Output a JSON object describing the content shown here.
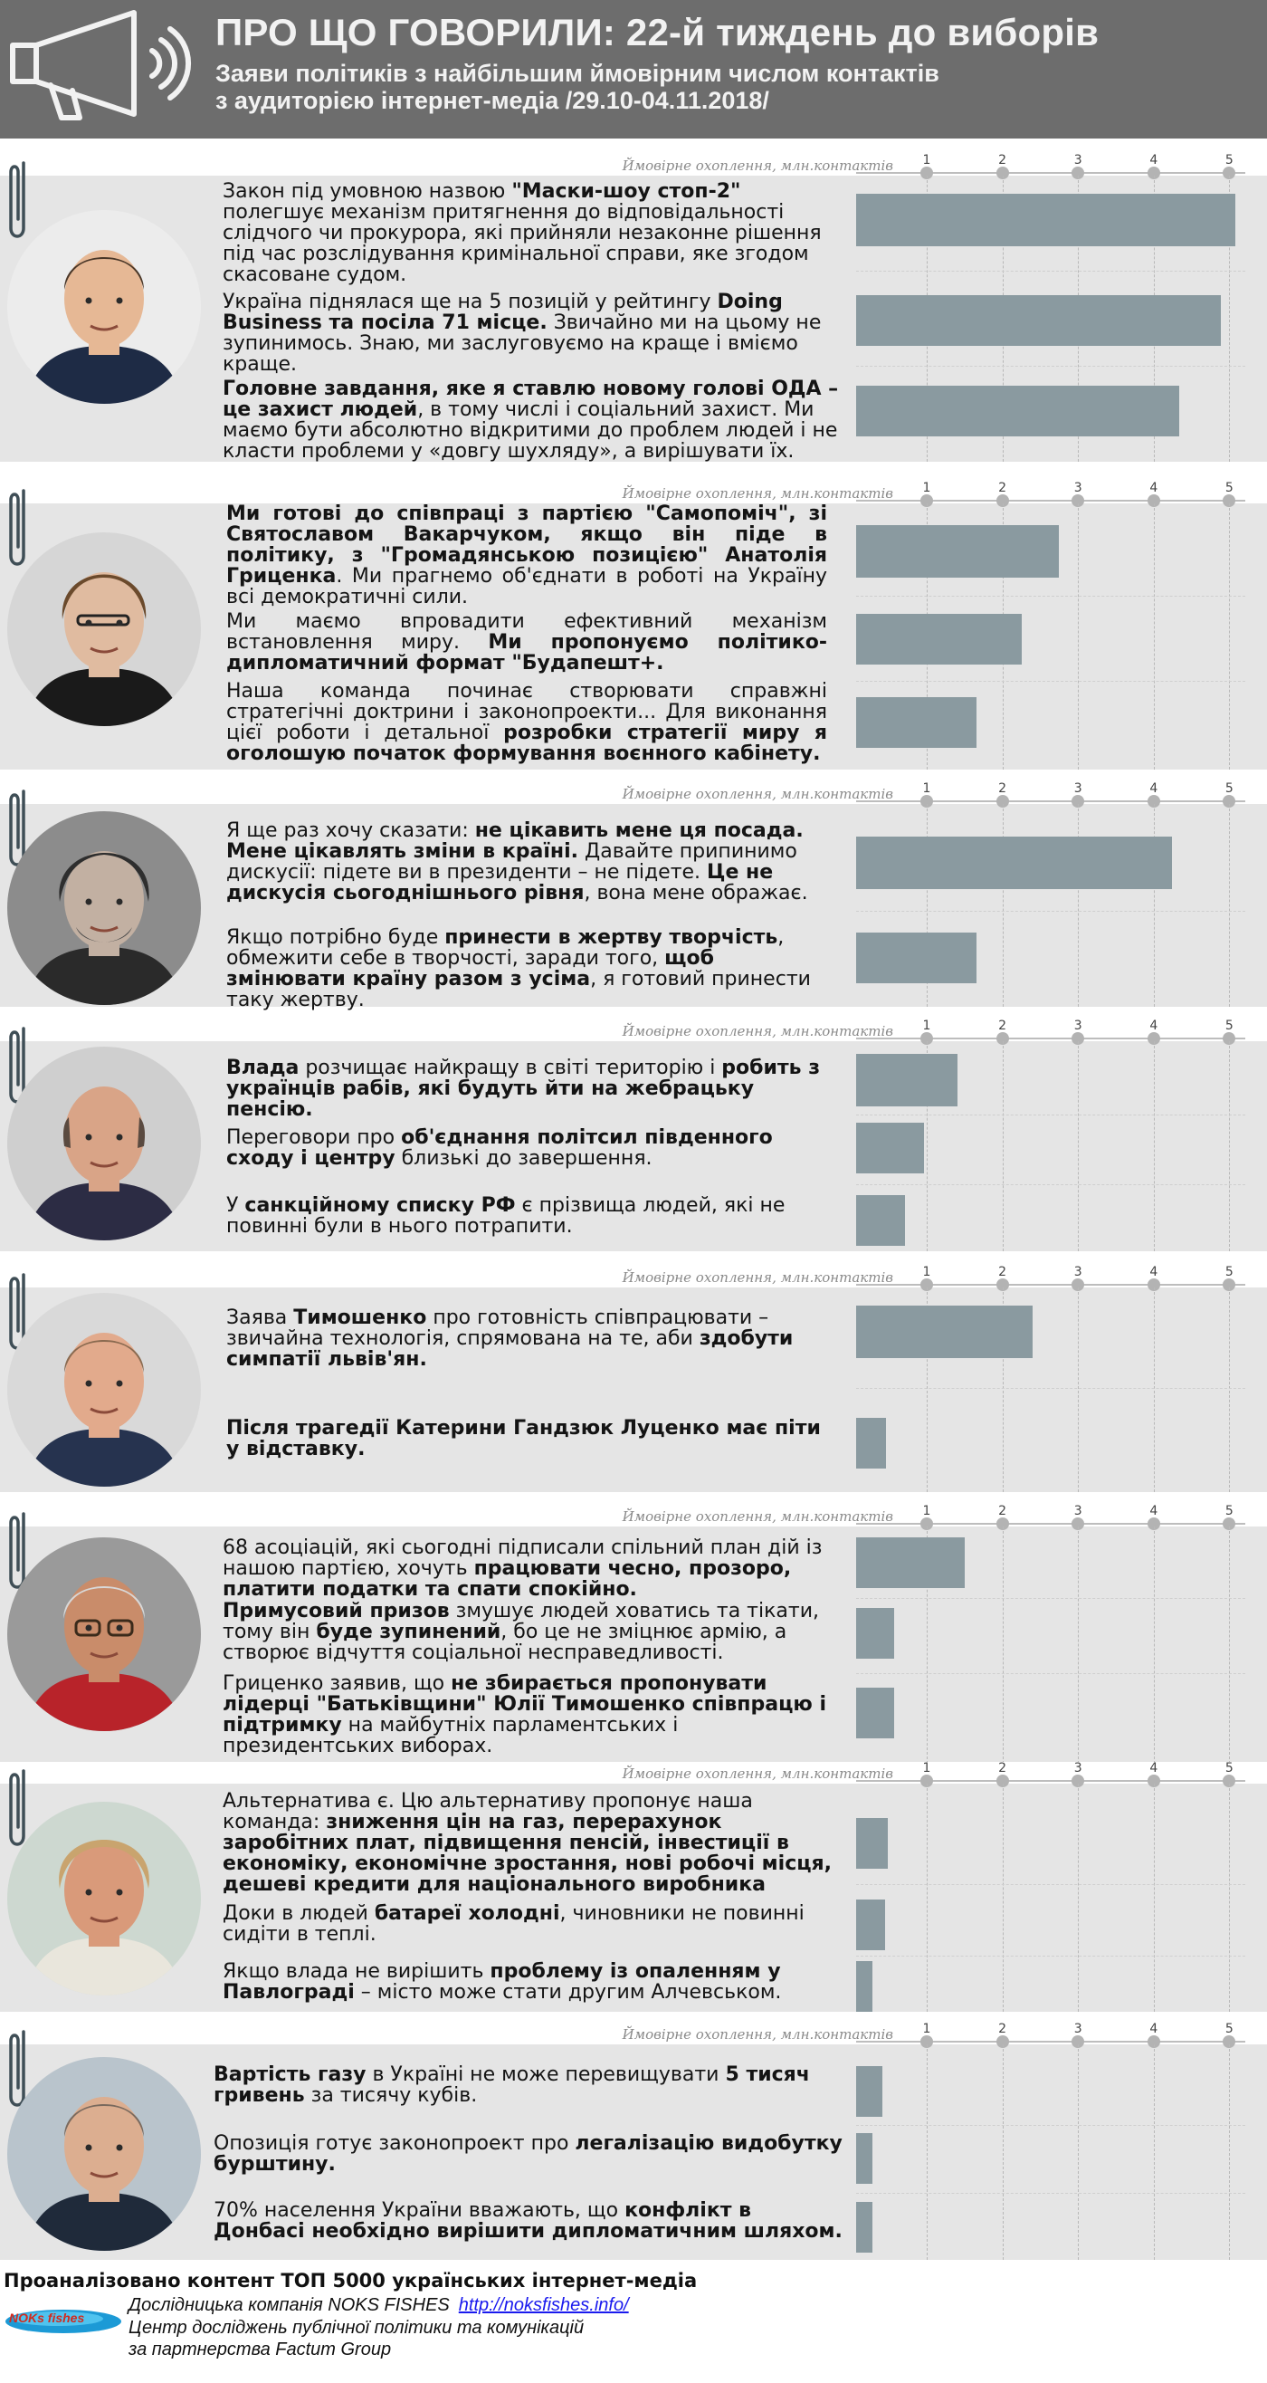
{
  "header": {
    "title": "ПРО ЩО ГОВОРИЛИ: 22-й тиждень до виборів",
    "subtitle_line1": "Заяви політиків з найбільшим ймовірним числом контактів",
    "subtitle_line2": "з аудиторією інтернет-медіа /29.10-04.11.2018/",
    "icon": "megaphone-icon"
  },
  "axis": {
    "label": "Ймовірне охоплення, млн.контактів",
    "ticks": [
      "1",
      "2",
      "3",
      "4",
      "5"
    ]
  },
  "chart_data": {
    "type": "bar",
    "orientation": "horizontal",
    "xlabel": "Ймовірне охоплення, млн.контактів",
    "xlim": [
      0,
      5.2
    ],
    "groups": [
      {
        "values": [
          5.05,
          4.85,
          4.3
        ]
      },
      {
        "values": [
          2.7,
          2.2,
          1.6
        ]
      },
      {
        "values": [
          4.2,
          1.6
        ]
      },
      {
        "values": [
          1.35,
          0.9,
          0.65
        ]
      },
      {
        "values": [
          2.35,
          0.4
        ]
      },
      {
        "values": [
          1.45,
          0.5,
          0.5
        ]
      },
      {
        "values": [
          0.42,
          0.38,
          0.22
        ]
      },
      {
        "values": [
          0.35,
          0.22,
          0.22
        ]
      }
    ]
  },
  "sections": [
    {
      "quotes": [
        [
          {
            "t": "Закон під умовною назвою "
          },
          {
            "b": "\"Маски-шоу стоп-2\""
          },
          {
            "t": " полегшує механізм притягнення до відповідальності слідчого чи прокурора, які прийняли незаконне рішення під час розслідування кримінальної справи, яке згодом скасоване судом."
          }
        ],
        [
          {
            "t": "Україна піднялася ще на 5 позицій у рейтингу "
          },
          {
            "b": "Doing Business та посіла 71 місце."
          },
          {
            "t": " Звичайно ми на цьому не зупинимось. Знаю, ми заслуговуємо на краще і вміємо краще."
          }
        ],
        [
          {
            "b": "Головне завдання, яке я ставлю новому голові ОДА – це захист людей"
          },
          {
            "t": ", в тому числі і соціальний захист. Ми маємо бути абсолютно відкритими до проблем людей і не класти проблеми у «довгу шухляду», а вирішувати їх."
          }
        ]
      ]
    },
    {
      "quotes": [
        [
          {
            "b": "Ми готові до співпраці з партією \"Самопоміч\", зі Святославом Вакарчуком, якщо він піде в політику, з \"Громадянською позицією\" Анатолія Гриценка"
          },
          {
            "t": ". Ми прагнемо об'єднати в роботі на Україну всі демократичні сили."
          }
        ],
        [
          {
            "t": "Ми маємо впровадити ефективний механізм встановлення миру. "
          },
          {
            "b": "Ми пропонуємо політико-дипломатичний формат \"Будапешт+."
          }
        ],
        [
          {
            "t": "Наша команда починає створювати справжні стратегічні доктрини і законопроекти... Для виконання цієї роботи і детальної "
          },
          {
            "b": "розробки стратегії миру я оголошую початок формування воєнного кабінету."
          }
        ]
      ]
    },
    {
      "quotes": [
        [
          {
            "t": "Я ще раз хочу сказати: "
          },
          {
            "b": "не цікавить мене ця посада. Мене цікавлять зміни в країні."
          },
          {
            "t": " Давайте припинимо дискусії: підете ви в президенти – не підете. "
          },
          {
            "b": "Це не дискусія сьогоднішнього рівня"
          },
          {
            "t": ", вона мене ображає."
          }
        ],
        [
          {
            "t": "Якщо потрібно буде "
          },
          {
            "b": "принести в жертву творчість"
          },
          {
            "t": ", обмежити себе в творчості, заради того, "
          },
          {
            "b": "щоб змінювати країну разом з усіма"
          },
          {
            "t": ", я готовий принести таку жертву."
          }
        ]
      ]
    },
    {
      "quotes": [
        [
          {
            "b": "Влада"
          },
          {
            "t": " розчищає найкращу в світі територію і "
          },
          {
            "b": "робить з українців рабів, які будуть йти на жебрацьку пенсію."
          }
        ],
        [
          {
            "t": "Переговори про "
          },
          {
            "b": "об'єднання політсил південного сходу і центру"
          },
          {
            "t": " близькі до завершення."
          }
        ],
        [
          {
            "t": "У "
          },
          {
            "b": "санкційному списку РФ"
          },
          {
            "t": " є прізвища людей, які не повинні були в нього потрапити."
          }
        ]
      ]
    },
    {
      "quotes": [
        [
          {
            "t": "Заява "
          },
          {
            "b": "Тимошенко"
          },
          {
            "t": " про готовність співпрацювати – звичайна технологія, спрямована на те, аби "
          },
          {
            "b": "здобути симпатії львів'ян."
          }
        ],
        [
          {
            "b": "Після трагедії Катерини Гандзюк Луценко має піти у відставку."
          }
        ]
      ]
    },
    {
      "quotes": [
        [
          {
            "t": "68 асоціацій, які сьогодні підписали спільний план дій із нашою партією, хочуть "
          },
          {
            "b": "працювати чесно, прозоро, платити податки та спати спокійно."
          }
        ],
        [
          {
            "b": "Примусовий призов"
          },
          {
            "t": " змушує людей ховатись та тікати, тому він "
          },
          {
            "b": "буде зупинений"
          },
          {
            "t": ", бо це не зміцнює армію, а створює відчуття соціальної несправедливості."
          }
        ],
        [
          {
            "t": "Гриценко заявив, що "
          },
          {
            "b": "не збирається пропонувати лідерці \"Батьківщини\" Юлії Тимошенко співпрацю і підтримку"
          },
          {
            "t": " на майбутніх парламентських і президентських виборах."
          }
        ]
      ]
    },
    {
      "quotes": [
        [
          {
            "t": "Альтернатива є. Цю альтернативу пропонує наша команда: "
          },
          {
            "b": "зниження цін на газ, перерахунок заробітних плат, підвищення пенсій, інвестиції в економіку, економічне зростання, нові робочі місця, дешеві кредити для національного виробника"
          }
        ],
        [
          {
            "t": "Доки в людей "
          },
          {
            "b": "батареї холодні"
          },
          {
            "t": ", чиновники не повинні сидіти в теплі."
          }
        ],
        [
          {
            "t": "Якщо влада не вирішить "
          },
          {
            "b": "проблему із опаленням у Павлограді"
          },
          {
            "t": " – місто може стати другим Алчевськом."
          }
        ]
      ]
    },
    {
      "quotes": [
        [
          {
            "b": "Вартість газу"
          },
          {
            "t": " в Україні не може перевищувати "
          },
          {
            "b": "5 тисяч гривень"
          },
          {
            "t": " за тисячу кубів."
          }
        ],
        [
          {
            "t": "Опозиція готує законопроект про "
          },
          {
            "b": "легалізацію видобутку бурштину."
          }
        ],
        [
          {
            "t": "70% населення України вважають, що "
          },
          {
            "b": "конфлікт в Донбасі необхідно вирішити дипломатичним шляхом."
          }
        ]
      ]
    }
  ],
  "colors": {
    "header_bg": "#6d6d6d",
    "section_bg": "#e5e5e5",
    "bar": "#8a9aa0",
    "clip": "#3f4e56"
  },
  "footer": {
    "title": "Проаналізовано контент ТОП 5000 українських інтернет-медіа",
    "line1": "Дослідницька компанія NOKS FISHES",
    "link": "http://noksfishes.info/",
    "line2": "Центр досліджень публічної політики та комунікацій",
    "line3": "за партнерства Factum Group",
    "logo_text": "NOKs fishes"
  }
}
